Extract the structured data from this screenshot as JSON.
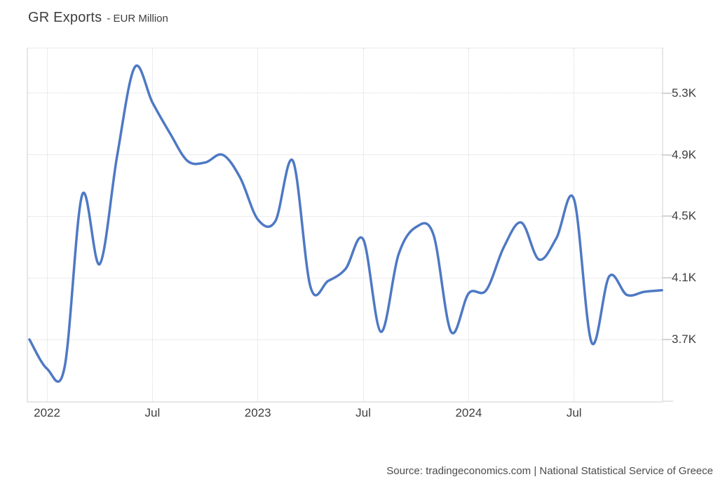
{
  "header": {
    "title": "GR Exports",
    "subtitle": "- EUR Million"
  },
  "source": {
    "text": "Source: tradingeconomics.com | National Statistical Service of Greece"
  },
  "chart_data": {
    "type": "line",
    "title": "GR Exports - EUR Million",
    "unit": "EUR Million",
    "grid": true,
    "legend_position": "none",
    "line_color": "#4e79c4",
    "x": [
      "2021-12",
      "2022-01",
      "2022-02",
      "2022-03",
      "2022-04",
      "2022-05",
      "2022-06",
      "2022-07",
      "2022-08",
      "2022-09",
      "2022-10",
      "2022-11",
      "2022-12",
      "2023-01",
      "2023-02",
      "2023-03",
      "2023-04",
      "2023-05",
      "2023-06",
      "2023-07",
      "2023-08",
      "2023-09",
      "2023-10",
      "2023-11",
      "2023-12",
      "2024-01",
      "2024-02",
      "2024-03",
      "2024-04",
      "2024-05",
      "2024-06",
      "2024-07",
      "2024-08",
      "2024-09",
      "2024-10",
      "2024-11",
      "2024-12"
    ],
    "values": [
      3700,
      3510,
      3520,
      4640,
      4190,
      4900,
      5470,
      5240,
      5040,
      4860,
      4850,
      4900,
      4750,
      4480,
      4470,
      4860,
      4040,
      4080,
      4160,
      4350,
      3750,
      4250,
      4430,
      4380,
      3750,
      4000,
      4020,
      4300,
      4460,
      4220,
      4360,
      4610,
      3680,
      4110,
      3990,
      4010,
      4020
    ],
    "ylim": [
      3299,
      5596
    ],
    "y_ticks": [
      {
        "value": 3700,
        "label": "3.7K"
      },
      {
        "value": 4100,
        "label": "4.1K"
      },
      {
        "value": 4500,
        "label": "4.5K"
      },
      {
        "value": 4900,
        "label": "4.9K"
      },
      {
        "value": 5300,
        "label": "5.3K"
      }
    ],
    "x_ticks": [
      {
        "index": 1,
        "label": "2022"
      },
      {
        "index": 7,
        "label": "Jul"
      },
      {
        "index": 13,
        "label": "2023"
      },
      {
        "index": 19,
        "label": "Jul"
      },
      {
        "index": 25,
        "label": "2024"
      },
      {
        "index": 31,
        "label": "Jul"
      }
    ]
  }
}
